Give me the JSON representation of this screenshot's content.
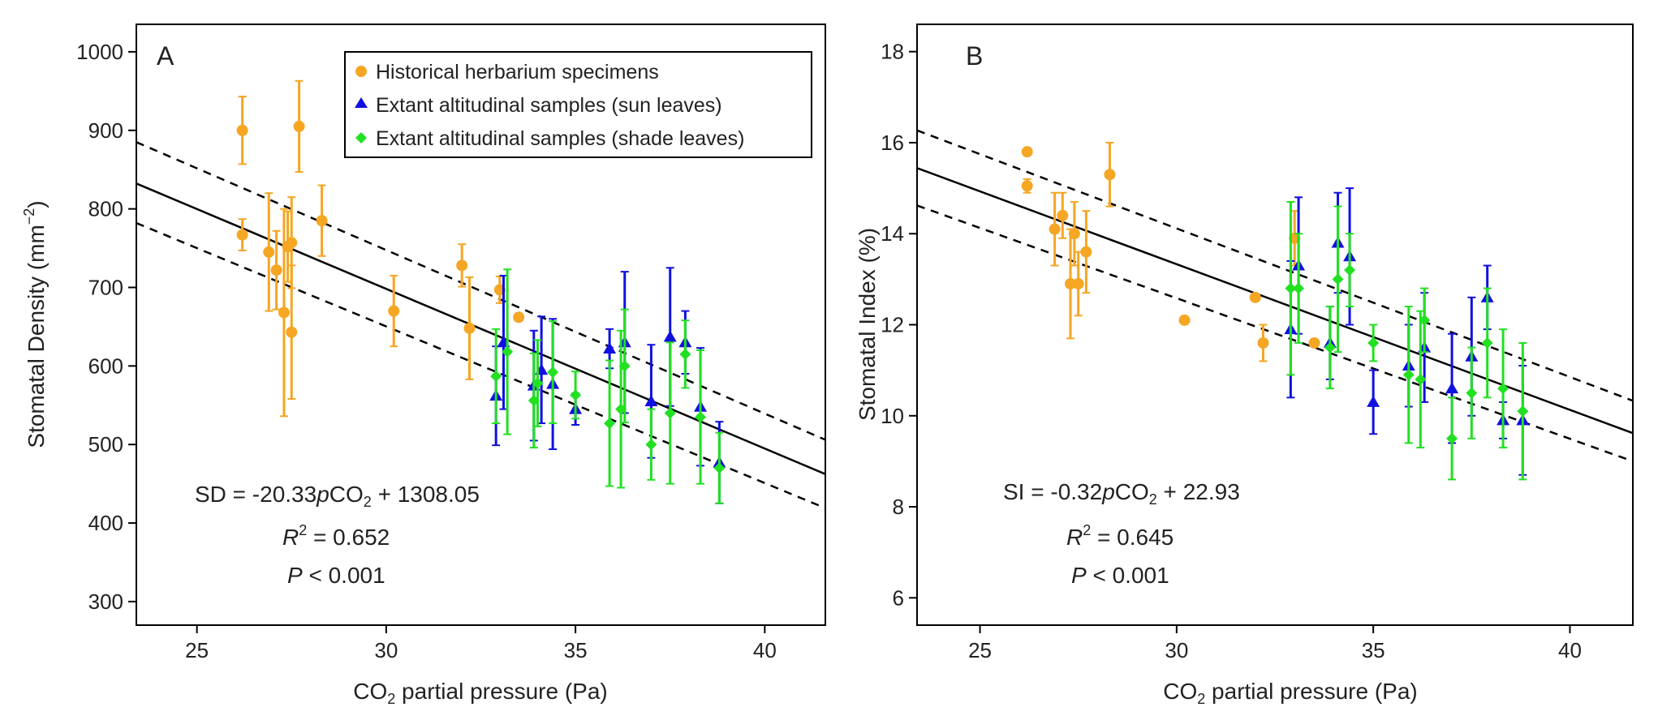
{
  "colors": {
    "herbarium": "#F5A623",
    "sun": "#1010E0",
    "shade": "#22E022",
    "line": "#000000"
  },
  "chart_data": [
    {
      "type": "scatter",
      "panel_label": "A",
      "xlabel_main": "CO",
      "xlabel_sub": "2",
      "xlabel_rest": " partial pressure (Pa)",
      "ylabel_main": "Stomatal Density (mm",
      "ylabel_sup": "−2",
      "ylabel_rest": ")",
      "xlim": [
        23.4,
        41.6
      ],
      "ylim": [
        270,
        1035
      ],
      "xticks": [
        25,
        30,
        35,
        40
      ],
      "yticks": [
        300,
        400,
        500,
        600,
        700,
        800,
        900,
        1000
      ],
      "legend": [
        {
          "label": "Historical herbarium specimens",
          "marker": "circle",
          "color": "#F5A623"
        },
        {
          "label": "Extant altitudinal samples (sun leaves)",
          "marker": "triangle",
          "color": "#1010E0"
        },
        {
          "label": "Extant altitudinal samples (shade leaves)",
          "marker": "diamond",
          "color": "#22E022"
        }
      ],
      "equation": {
        "lhs": "SD = -20.33",
        "p": "p",
        "co": "CO",
        "sub": "2",
        "rest": " + 1308.05"
      },
      "r2": {
        "r": "R",
        "sup": "2",
        "rest": " = 0.652"
      },
      "pval": {
        "p": "P",
        "rest": " < 0.001"
      },
      "fit": {
        "slope": -20.33,
        "intercept": 1308.05
      },
      "ci_upper": [
        [
          23.4,
          885
        ],
        [
          41.6,
          506
        ]
      ],
      "ci_lower": [
        [
          23.4,
          782
        ],
        [
          41.6,
          419
        ]
      ],
      "series": [
        {
          "name": "Historical herbarium specimens",
          "marker": "circle",
          "points": [
            {
              "x": 26.2,
              "y": 900,
              "err": 43
            },
            {
              "x": 26.2,
              "y": 767,
              "err": 20
            },
            {
              "x": 26.9,
              "y": 745,
              "err": 75
            },
            {
              "x": 27.1,
              "y": 722,
              "err": 50
            },
            {
              "x": 27.3,
              "y": 668,
              "err": 132
            },
            {
              "x": 27.4,
              "y": 752,
              "err": 45
            },
            {
              "x": 27.5,
              "y": 757,
              "err": 58
            },
            {
              "x": 27.5,
              "y": 643,
              "err": 85
            },
            {
              "x": 27.7,
              "y": 905,
              "err": 58
            },
            {
              "x": 28.3,
              "y": 785,
              "err": 45
            },
            {
              "x": 30.2,
              "y": 670,
              "err": 45
            },
            {
              "x": 32.0,
              "y": 728,
              "err": 27
            },
            {
              "x": 32.2,
              "y": 648,
              "err": 65
            },
            {
              "x": 33.0,
              "y": 697,
              "err": 17
            },
            {
              "x": 33.5,
              "y": 662,
              "err": 0
            }
          ]
        },
        {
          "name": "Extant altitudinal samples (sun leaves)",
          "marker": "triangle",
          "points": [
            {
              "x": 32.9,
              "y": 562,
              "err": 63
            },
            {
              "x": 33.1,
              "y": 630,
              "err": 85
            },
            {
              "x": 33.9,
              "y": 575,
              "err": 70
            },
            {
              "x": 34.1,
              "y": 595,
              "err": 68
            },
            {
              "x": 34.4,
              "y": 577,
              "err": 83
            },
            {
              "x": 35.0,
              "y": 545,
              "err": 20
            },
            {
              "x": 35.9,
              "y": 622,
              "err": 25
            },
            {
              "x": 36.3,
              "y": 630,
              "err": 90
            },
            {
              "x": 37.0,
              "y": 555,
              "err": 72
            },
            {
              "x": 37.5,
              "y": 637,
              "err": 88
            },
            {
              "x": 37.9,
              "y": 630,
              "err": 40
            },
            {
              "x": 38.3,
              "y": 548,
              "err": 75
            },
            {
              "x": 38.8,
              "y": 477,
              "err": 52
            }
          ]
        },
        {
          "name": "Extant altitudinal samples (shade leaves)",
          "marker": "diamond",
          "points": [
            {
              "x": 32.9,
              "y": 587,
              "err": 60
            },
            {
              "x": 33.2,
              "y": 618,
              "err": 105
            },
            {
              "x": 33.9,
              "y": 556,
              "err": 60
            },
            {
              "x": 34.0,
              "y": 578,
              "err": 55
            },
            {
              "x": 34.4,
              "y": 592,
              "err": 65
            },
            {
              "x": 35.0,
              "y": 563,
              "err": 30
            },
            {
              "x": 35.9,
              "y": 527,
              "err": 80
            },
            {
              "x": 36.3,
              "y": 600,
              "err": 72
            },
            {
              "x": 36.2,
              "y": 545,
              "err": 100
            },
            {
              "x": 37.0,
              "y": 500,
              "err": 45
            },
            {
              "x": 37.5,
              "y": 540,
              "err": 90
            },
            {
              "x": 37.9,
              "y": 615,
              "err": 43
            },
            {
              "x": 38.3,
              "y": 535,
              "err": 85
            },
            {
              "x": 38.8,
              "y": 470,
              "err": 45
            }
          ]
        }
      ]
    },
    {
      "type": "scatter",
      "panel_label": "B",
      "xlabel_main": "CO",
      "xlabel_sub": "2",
      "xlabel_rest": " partial pressure (Pa)",
      "ylabel_main": "Stomatal Index (%)",
      "xlim": [
        23.4,
        41.6
      ],
      "ylim": [
        5.4,
        18.6
      ],
      "xticks": [
        25,
        30,
        35,
        40
      ],
      "yticks": [
        6,
        8,
        10,
        12,
        14,
        16,
        18
      ],
      "equation": {
        "lhs": "SI = -0.32",
        "p": "p",
        "co": "CO",
        "sub": "2",
        "rest": " + 22.93"
      },
      "r2": {
        "r": "R",
        "sup": "2",
        "rest": " = 0.645"
      },
      "pval": {
        "p": "P",
        "rest": " < 0.001"
      },
      "fit": {
        "slope": -0.32,
        "intercept": 22.93
      },
      "ci_upper": [
        [
          23.4,
          16.27
        ],
        [
          41.6,
          10.33
        ]
      ],
      "ci_lower": [
        [
          23.4,
          14.62
        ],
        [
          41.6,
          9.0
        ]
      ],
      "series": [
        {
          "name": "Historical herbarium specimens",
          "marker": "circle",
          "points": [
            {
              "x": 26.2,
              "y": 15.8,
              "err": 0
            },
            {
              "x": 26.2,
              "y": 15.05,
              "err": 0.15
            },
            {
              "x": 26.9,
              "y": 14.1,
              "err": 0.8
            },
            {
              "x": 27.1,
              "y": 14.4,
              "err": 0.5
            },
            {
              "x": 27.3,
              "y": 12.9,
              "err": 1.2
            },
            {
              "x": 27.4,
              "y": 14.0,
              "err": 0.7
            },
            {
              "x": 27.5,
              "y": 12.9,
              "err": 0.7
            },
            {
              "x": 27.7,
              "y": 13.6,
              "err": 0.9
            },
            {
              "x": 28.3,
              "y": 15.3,
              "err": 0.7
            },
            {
              "x": 30.2,
              "y": 12.1,
              "err": 0
            },
            {
              "x": 32.0,
              "y": 12.6,
              "err": 0
            },
            {
              "x": 32.2,
              "y": 11.6,
              "err": 0.4
            },
            {
              "x": 33.0,
              "y": 13.9,
              "err": 0.6
            },
            {
              "x": 33.5,
              "y": 11.6,
              "err": 0
            }
          ]
        },
        {
          "name": "Extant altitudinal samples (sun leaves)",
          "marker": "triangle",
          "points": [
            {
              "x": 32.9,
              "y": 11.9,
              "err": 1.5
            },
            {
              "x": 33.1,
              "y": 13.3,
              "err": 1.5
            },
            {
              "x": 33.9,
              "y": 11.6,
              "err": 0.8
            },
            {
              "x": 34.1,
              "y": 13.8,
              "err": 1.1
            },
            {
              "x": 34.4,
              "y": 13.5,
              "err": 1.5
            },
            {
              "x": 35.0,
              "y": 10.3,
              "err": 0.7
            },
            {
              "x": 35.9,
              "y": 11.1,
              "err": 0.9
            },
            {
              "x": 36.3,
              "y": 11.5,
              "err": 1.2
            },
            {
              "x": 37.0,
              "y": 10.6,
              "err": 1.2
            },
            {
              "x": 37.5,
              "y": 11.3,
              "err": 1.3
            },
            {
              "x": 37.9,
              "y": 12.6,
              "err": 0.7
            },
            {
              "x": 38.3,
              "y": 9.9,
              "err": 0.4
            },
            {
              "x": 38.8,
              "y": 9.9,
              "err": 1.2
            }
          ]
        },
        {
          "name": "Extant altitudinal samples (shade leaves)",
          "marker": "diamond",
          "points": [
            {
              "x": 32.9,
              "y": 12.8,
              "err": 1.9
            },
            {
              "x": 33.1,
              "y": 12.8,
              "err": 1.2
            },
            {
              "x": 33.9,
              "y": 11.5,
              "err": 0.9
            },
            {
              "x": 34.1,
              "y": 13.0,
              "err": 1.6
            },
            {
              "x": 34.4,
              "y": 13.2,
              "err": 0.8
            },
            {
              "x": 35.0,
              "y": 11.6,
              "err": 0.4
            },
            {
              "x": 35.9,
              "y": 10.9,
              "err": 1.5
            },
            {
              "x": 36.2,
              "y": 10.8,
              "err": 1.5
            },
            {
              "x": 36.3,
              "y": 12.1,
              "err": 0.7
            },
            {
              "x": 37.0,
              "y": 9.5,
              "err": 0.9
            },
            {
              "x": 37.5,
              "y": 10.5,
              "err": 1.0
            },
            {
              "x": 37.9,
              "y": 11.6,
              "err": 1.2
            },
            {
              "x": 38.3,
              "y": 10.6,
              "err": 1.3
            },
            {
              "x": 38.8,
              "y": 10.1,
              "err": 1.5
            }
          ]
        }
      ]
    }
  ]
}
